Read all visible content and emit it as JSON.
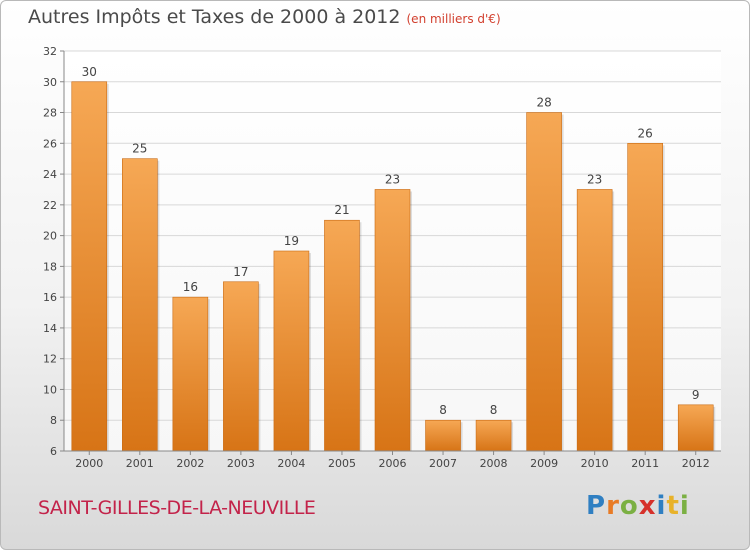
{
  "title": {
    "main": "Autres Impôts et Taxes de 2000 à 2012",
    "unit": "(en milliers d'€)"
  },
  "commune": "SAINT-GILLES-DE-LA-NEUVILLE",
  "logo": {
    "text": "Proxiti",
    "letters": [
      {
        "char": "P",
        "color": "#2f7fc2"
      },
      {
        "char": "r",
        "color": "#e87b26"
      },
      {
        "char": "o",
        "color": "#7bb043"
      },
      {
        "char": "x",
        "color": "#d6312b"
      },
      {
        "char": "i",
        "color": "#2f7fc2"
      },
      {
        "char": "t",
        "color": "#e8b22a"
      },
      {
        "char": "i",
        "color": "#7bb043"
      }
    ]
  },
  "colors": {
    "bar_top": "#f6a855",
    "bar_bottom": "#d77416",
    "axis_text": "#444444",
    "grid": "#d8d8d8"
  },
  "chart_data": {
    "type": "bar",
    "categories": [
      "2000",
      "2001",
      "2002",
      "2003",
      "2004",
      "2005",
      "2006",
      "2007",
      "2008",
      "2009",
      "2010",
      "2011",
      "2012"
    ],
    "values": [
      30,
      25,
      16,
      17,
      19,
      21,
      23,
      8,
      8,
      28,
      23,
      26,
      9
    ],
    "data_labels": [
      "30",
      "25",
      "16",
      "17",
      "19",
      "21",
      "23",
      "8",
      "8",
      "28",
      "23",
      "26",
      "9"
    ],
    "title": "Autres Impôts et Taxes de 2000 à 2012",
    "subtitle": "(en milliers d'€)",
    "xlabel": "",
    "ylabel": "",
    "ylim": [
      6,
      32
    ],
    "yticks": [
      6,
      8,
      10,
      12,
      14,
      16,
      18,
      20,
      22,
      24,
      26,
      28,
      30,
      32
    ],
    "grid": true,
    "legend": "none"
  }
}
